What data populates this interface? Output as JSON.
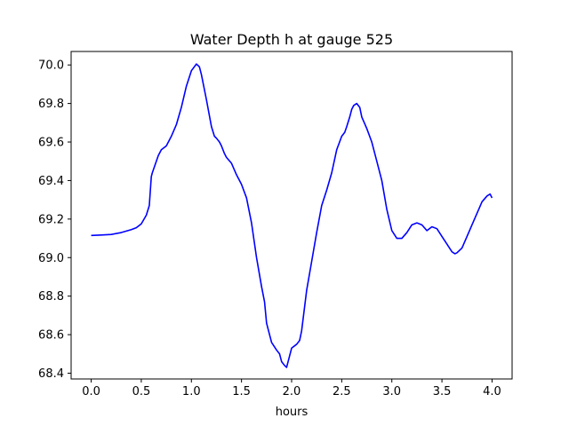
{
  "chart_data": {
    "type": "line",
    "title": "Water Depth h at gauge 525",
    "xlabel": "hours",
    "ylabel": "",
    "xlim": [
      -0.2,
      4.2
    ],
    "ylim": [
      68.37,
      70.07
    ],
    "xticks": [
      0.0,
      0.5,
      1.0,
      1.5,
      2.0,
      2.5,
      3.0,
      3.5,
      4.0
    ],
    "xtick_labels": [
      "0.0",
      "0.5",
      "1.0",
      "1.5",
      "2.0",
      "2.5",
      "3.0",
      "3.5",
      "4.0"
    ],
    "yticks": [
      68.4,
      68.6,
      68.8,
      69.0,
      69.2,
      69.4,
      69.6,
      69.8,
      70.0
    ],
    "ytick_labels": [
      "68.4",
      "68.6",
      "68.8",
      "69.0",
      "69.2",
      "69.4",
      "69.6",
      "69.8",
      "70.0"
    ],
    "grid": false,
    "series": [
      {
        "color": "#0000ff",
        "x": [
          0.0,
          0.1,
          0.2,
          0.3,
          0.4,
          0.45,
          0.5,
          0.55,
          0.58,
          0.6,
          0.61,
          0.63,
          0.65,
          0.67,
          0.7,
          0.75,
          0.8,
          0.85,
          0.9,
          0.95,
          1.0,
          1.05,
          1.08,
          1.1,
          1.15,
          1.2,
          1.23,
          1.25,
          1.28,
          1.3,
          1.33,
          1.35,
          1.4,
          1.45,
          1.5,
          1.55,
          1.6,
          1.65,
          1.7,
          1.73,
          1.75,
          1.8,
          1.85,
          1.88,
          1.9,
          1.93,
          1.95,
          2.0,
          2.05,
          2.08,
          2.1,
          2.15,
          2.2,
          2.25,
          2.3,
          2.35,
          2.4,
          2.45,
          2.5,
          2.53,
          2.55,
          2.58,
          2.6,
          2.62,
          2.65,
          2.68,
          2.7,
          2.75,
          2.8,
          2.85,
          2.9,
          2.95,
          3.0,
          3.05,
          3.1,
          3.15,
          3.2,
          3.25,
          3.3,
          3.35,
          3.4,
          3.45,
          3.5,
          3.55,
          3.6,
          3.63,
          3.65,
          3.7,
          3.75,
          3.8,
          3.85,
          3.9,
          3.95,
          3.98,
          4.0
        ],
        "y": [
          69.115,
          69.117,
          69.12,
          69.13,
          69.145,
          69.155,
          69.175,
          69.22,
          69.27,
          69.42,
          69.44,
          69.47,
          69.5,
          69.53,
          69.56,
          69.58,
          69.63,
          69.69,
          69.78,
          69.89,
          69.97,
          70.005,
          69.99,
          69.95,
          69.82,
          69.68,
          69.63,
          69.62,
          69.6,
          69.58,
          69.54,
          69.52,
          69.49,
          69.43,
          69.38,
          69.31,
          69.18,
          69.0,
          68.85,
          68.77,
          68.66,
          68.56,
          68.52,
          68.5,
          68.46,
          68.44,
          68.43,
          68.53,
          68.55,
          68.57,
          68.62,
          68.83,
          68.98,
          69.13,
          69.27,
          69.35,
          69.44,
          69.56,
          69.63,
          69.65,
          69.68,
          69.73,
          69.77,
          69.79,
          69.8,
          69.78,
          69.73,
          69.67,
          69.6,
          69.5,
          69.4,
          69.25,
          69.14,
          69.1,
          69.1,
          69.13,
          69.17,
          69.18,
          69.17,
          69.14,
          69.16,
          69.15,
          69.11,
          69.07,
          69.03,
          69.02,
          69.025,
          69.05,
          69.11,
          69.17,
          69.23,
          69.29,
          69.32,
          69.33,
          69.31
        ]
      }
    ]
  }
}
